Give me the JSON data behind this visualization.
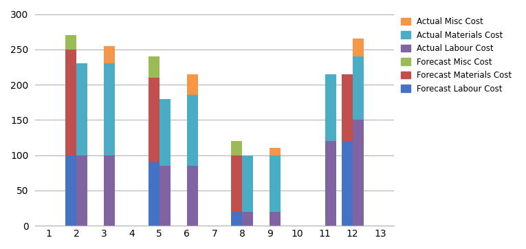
{
  "categories": [
    1,
    2,
    3,
    4,
    5,
    6,
    7,
    8,
    9,
    10,
    11,
    12,
    13
  ],
  "series": {
    "Forecast Labour Cost": [
      0,
      100,
      0,
      0,
      90,
      0,
      0,
      20,
      0,
      0,
      0,
      120,
      0
    ],
    "Forecast Materials Cost": [
      0,
      150,
      0,
      0,
      120,
      0,
      0,
      80,
      0,
      0,
      0,
      95,
      0
    ],
    "Forecast Misc Cost": [
      0,
      20,
      0,
      0,
      30,
      0,
      0,
      20,
      0,
      0,
      0,
      0,
      0
    ],
    "Actual Labour Cost": [
      0,
      100,
      100,
      0,
      85,
      85,
      0,
      20,
      20,
      0,
      120,
      150,
      0
    ],
    "Actual Materials Cost": [
      0,
      130,
      130,
      0,
      95,
      100,
      0,
      80,
      80,
      0,
      95,
      90,
      0
    ],
    "Actual Misc Cost": [
      0,
      0,
      25,
      0,
      0,
      30,
      0,
      0,
      10,
      0,
      0,
      25,
      0
    ]
  },
  "colors": {
    "Forecast Labour Cost": "#4472C4",
    "Forecast Materials Cost": "#C0504D",
    "Forecast Misc Cost": "#9BBB59",
    "Actual Labour Cost": "#8064A2",
    "Actual Materials Cost": "#4BACC6",
    "Actual Misc Cost": "#F79646"
  },
  "ylim": [
    0,
    300
  ],
  "yticks": [
    0,
    50,
    100,
    150,
    200,
    250,
    300
  ],
  "legend_order": [
    "Actual Misc Cost",
    "Actual Materials Cost",
    "Actual Labour Cost",
    "Forecast Misc Cost",
    "Forecast Materials Cost",
    "Forecast Labour Cost"
  ],
  "bar_width": 0.4,
  "figsize": [
    7.65,
    3.62
  ],
  "dpi": 100
}
